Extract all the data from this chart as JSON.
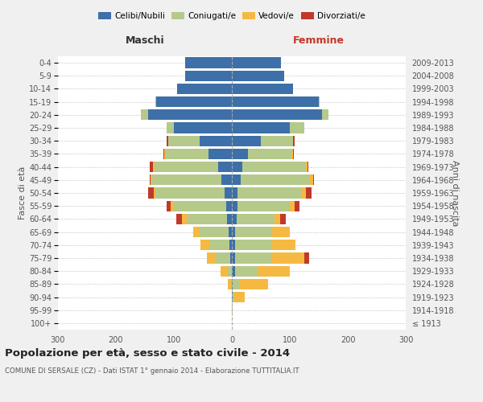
{
  "age_groups": [
    "100+",
    "95-99",
    "90-94",
    "85-89",
    "80-84",
    "75-79",
    "70-74",
    "65-69",
    "60-64",
    "55-59",
    "50-54",
    "45-49",
    "40-44",
    "35-39",
    "30-34",
    "25-29",
    "20-24",
    "15-19",
    "10-14",
    "5-9",
    "0-4"
  ],
  "birth_years": [
    "≤ 1913",
    "1914-1918",
    "1919-1923",
    "1924-1928",
    "1929-1933",
    "1934-1938",
    "1939-1943",
    "1944-1948",
    "1949-1953",
    "1954-1958",
    "1959-1963",
    "1964-1968",
    "1969-1973",
    "1974-1978",
    "1979-1983",
    "1984-1988",
    "1989-1993",
    "1994-1998",
    "1999-2003",
    "2004-2008",
    "2009-2013"
  ],
  "maschi": {
    "celibi": [
      0,
      0,
      0,
      0,
      0,
      3,
      4,
      5,
      8,
      10,
      12,
      18,
      24,
      40,
      55,
      100,
      145,
      130,
      95,
      80,
      80
    ],
    "coniugati": [
      0,
      0,
      0,
      2,
      8,
      25,
      35,
      50,
      70,
      90,
      120,
      120,
      110,
      75,
      55,
      12,
      12,
      2,
      0,
      0,
      0
    ],
    "vedovi": [
      0,
      0,
      0,
      5,
      12,
      15,
      15,
      12,
      8,
      5,
      3,
      2,
      2,
      1,
      0,
      0,
      0,
      0,
      0,
      0,
      0
    ],
    "divorziati": [
      0,
      0,
      0,
      0,
      0,
      0,
      0,
      0,
      10,
      8,
      10,
      2,
      5,
      2,
      2,
      0,
      0,
      0,
      0,
      0,
      0
    ]
  },
  "femmine": {
    "nubili": [
      0,
      0,
      2,
      2,
      5,
      5,
      5,
      5,
      8,
      10,
      10,
      15,
      18,
      28,
      50,
      100,
      155,
      150,
      105,
      90,
      85
    ],
    "coniugate": [
      0,
      0,
      2,
      10,
      40,
      65,
      65,
      65,
      65,
      90,
      110,
      120,
      110,
      75,
      55,
      25,
      12,
      2,
      0,
      0,
      0
    ],
    "vedove": [
      0,
      2,
      18,
      50,
      55,
      55,
      40,
      30,
      10,
      8,
      8,
      5,
      2,
      2,
      0,
      0,
      0,
      0,
      0,
      0,
      0
    ],
    "divorziate": [
      0,
      0,
      0,
      0,
      0,
      8,
      0,
      0,
      10,
      8,
      10,
      2,
      2,
      2,
      4,
      0,
      0,
      0,
      0,
      0,
      0
    ]
  },
  "colors": {
    "celibi": "#3d6fa8",
    "coniugati": "#b5c98a",
    "vedovi": "#f5b942",
    "divorziati": "#c0392b"
  },
  "xlim": 300,
  "title": "Popolazione per età, sesso e stato civile - 2014",
  "subtitle": "COMUNE DI SERSALE (CZ) - Dati ISTAT 1° gennaio 2014 - Elaborazione TUTTITALIA.IT",
  "ylabel_left": "Fasce di età",
  "ylabel_right": "Anni di nascita",
  "xlabel_left": "Maschi",
  "xlabel_right": "Femmine",
  "bg_color": "#f0f0f0",
  "plot_bg_color": "#ffffff",
  "legend_labels": [
    "Celibi/Nubili",
    "Coniugati/e",
    "Vedovi/e",
    "Divorziati/e"
  ]
}
